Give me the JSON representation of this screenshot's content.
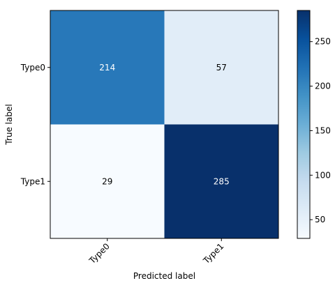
{
  "chart_data": {
    "type": "heatmap",
    "title": "",
    "xlabel": "Predicted label",
    "ylabel": "True label",
    "x_categories": [
      "Type0",
      "Type1"
    ],
    "y_categories": [
      "Type0",
      "Type1"
    ],
    "values": [
      [
        214,
        57
      ],
      [
        29,
        285
      ]
    ],
    "colormap": "Blues",
    "colorbar": {
      "min": 29,
      "max": 285,
      "ticks": [
        50,
        100,
        150,
        200,
        250
      ]
    },
    "text_colors": {
      "light_cells": "#000000",
      "dark_cells": "#ffffff"
    },
    "x_tick_rotation_deg": 45
  }
}
